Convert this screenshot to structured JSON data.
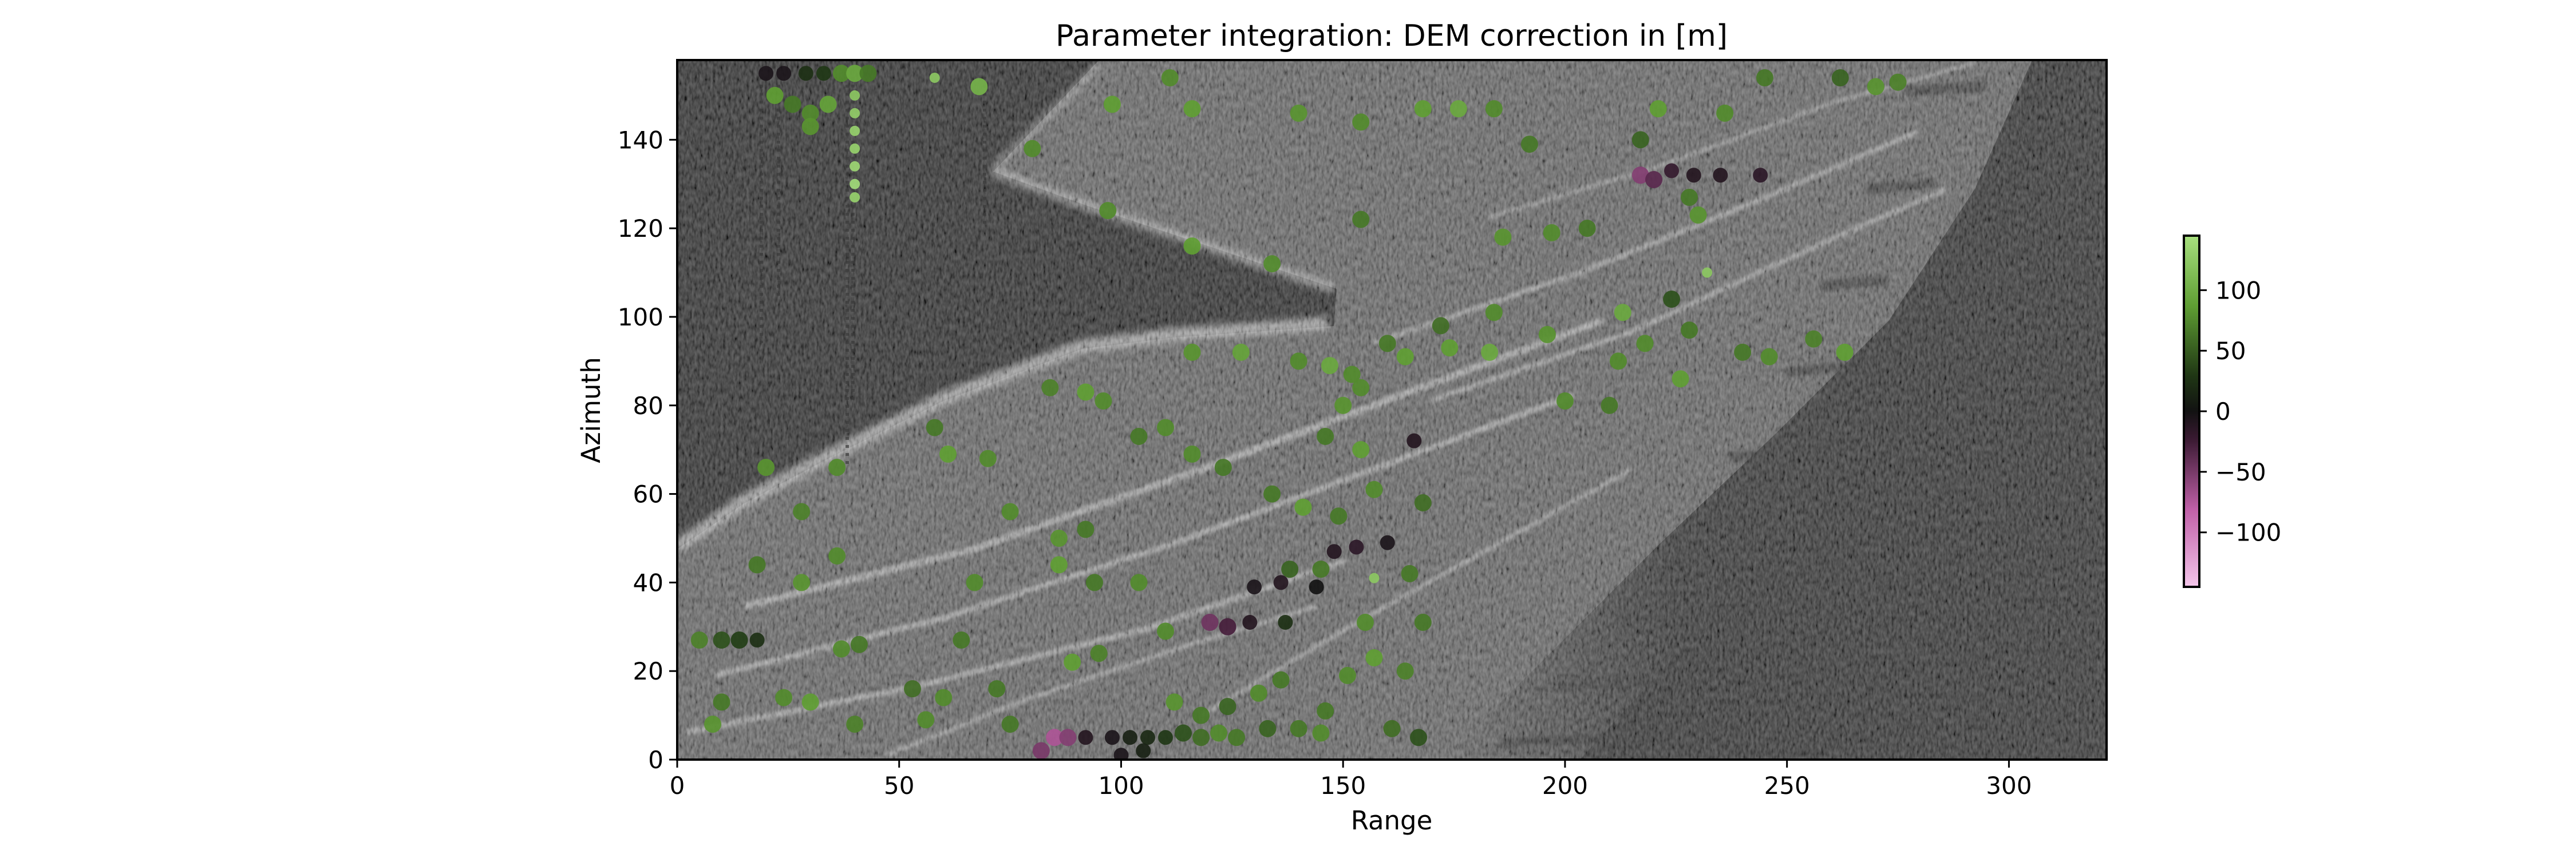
{
  "chart_data": {
    "type": "heatmap",
    "title": "Parameter integration: DEM correction in [m]",
    "xlabel": "Range",
    "ylabel": "Azimuth",
    "xlim": [
      0,
      322
    ],
    "ylim": [
      0,
      158
    ],
    "xticks": [
      0,
      50,
      100,
      150,
      200,
      250,
      300
    ],
    "yticks": [
      0,
      20,
      40,
      60,
      80,
      100,
      120,
      140
    ],
    "grid": false,
    "background": "grayscale SAR amplitude image",
    "colorbar": {
      "clim": [
        -145,
        145
      ],
      "ticks": [
        100,
        50,
        0,
        -50,
        -100
      ],
      "tick_labels": [
        "100",
        "50",
        "0",
        "−50",
        "−100"
      ],
      "colormap": "PiYG-like diverging (pink → black → green)",
      "colors": [
        "#f4c6ea",
        "#b04d9a",
        "#1f0f1a",
        "#151515",
        "#223d17",
        "#5f9e33",
        "#a8e07f"
      ]
    },
    "overlay_points": [
      {
        "x": 20,
        "y": 155,
        "v": -5
      },
      {
        "x": 24,
        "y": 155,
        "v": -5
      },
      {
        "x": 29,
        "y": 155,
        "v": 20
      },
      {
        "x": 33,
        "y": 155,
        "v": 25
      },
      {
        "x": 37,
        "y": 155,
        "v": 70
      },
      {
        "x": 40,
        "y": 155,
        "v": 90
      },
      {
        "x": 43,
        "y": 155,
        "v": 60
      },
      {
        "x": 58,
        "y": 154,
        "v": 120
      },
      {
        "x": 68,
        "y": 152,
        "v": 100
      },
      {
        "x": 40,
        "y": 150,
        "v": 120
      },
      {
        "x": 40,
        "y": 146,
        "v": 125
      },
      {
        "x": 40,
        "y": 142,
        "v": 130
      },
      {
        "x": 40,
        "y": 138,
        "v": 130
      },
      {
        "x": 40,
        "y": 134,
        "v": 135
      },
      {
        "x": 40,
        "y": 130,
        "v": 140
      },
      {
        "x": 40,
        "y": 127,
        "v": 130
      },
      {
        "x": 22,
        "y": 150,
        "v": 80
      },
      {
        "x": 26,
        "y": 148,
        "v": 60
      },
      {
        "x": 30,
        "y": 146,
        "v": 70
      },
      {
        "x": 34,
        "y": 148,
        "v": 85
      },
      {
        "x": 30,
        "y": 143,
        "v": 75
      },
      {
        "x": 80,
        "y": 138,
        "v": 70
      },
      {
        "x": 98,
        "y": 148,
        "v": 80
      },
      {
        "x": 111,
        "y": 154,
        "v": 70
      },
      {
        "x": 116,
        "y": 147,
        "v": 80
      },
      {
        "x": 140,
        "y": 146,
        "v": 75
      },
      {
        "x": 154,
        "y": 144,
        "v": 70
      },
      {
        "x": 168,
        "y": 147,
        "v": 80
      },
      {
        "x": 176,
        "y": 147,
        "v": 90
      },
      {
        "x": 184,
        "y": 147,
        "v": 70
      },
      {
        "x": 221,
        "y": 147,
        "v": 80
      },
      {
        "x": 236,
        "y": 146,
        "v": 70
      },
      {
        "x": 245,
        "y": 154,
        "v": 60
      },
      {
        "x": 262,
        "y": 154,
        "v": 50
      },
      {
        "x": 270,
        "y": 152,
        "v": 75
      },
      {
        "x": 275,
        "y": 153,
        "v": 65
      },
      {
        "x": 217,
        "y": 132,
        "v": -60
      },
      {
        "x": 220,
        "y": 131,
        "v": -40
      },
      {
        "x": 224,
        "y": 133,
        "v": -20
      },
      {
        "x": 229,
        "y": 132,
        "v": -10
      },
      {
        "x": 235,
        "y": 132,
        "v": -10
      },
      {
        "x": 244,
        "y": 132,
        "v": -15
      },
      {
        "x": 228,
        "y": 127,
        "v": 60
      },
      {
        "x": 230,
        "y": 123,
        "v": 75
      },
      {
        "x": 217,
        "y": 140,
        "v": 50
      },
      {
        "x": 192,
        "y": 139,
        "v": 60
      },
      {
        "x": 97,
        "y": 124,
        "v": 70
      },
      {
        "x": 116,
        "y": 116,
        "v": 80
      },
      {
        "x": 134,
        "y": 112,
        "v": 70
      },
      {
        "x": 154,
        "y": 122,
        "v": 60
      },
      {
        "x": 186,
        "y": 118,
        "v": 75
      },
      {
        "x": 197,
        "y": 119,
        "v": 70
      },
      {
        "x": 205,
        "y": 120,
        "v": 60
      },
      {
        "x": 232,
        "y": 110,
        "v": 120
      },
      {
        "x": 224,
        "y": 104,
        "v": 40
      },
      {
        "x": 184,
        "y": 101,
        "v": 70
      },
      {
        "x": 172,
        "y": 98,
        "v": 55
      },
      {
        "x": 160,
        "y": 94,
        "v": 60
      },
      {
        "x": 174,
        "y": 93,
        "v": 80
      },
      {
        "x": 183,
        "y": 92,
        "v": 90
      },
      {
        "x": 196,
        "y": 96,
        "v": 75
      },
      {
        "x": 213,
        "y": 101,
        "v": 90
      },
      {
        "x": 218,
        "y": 94,
        "v": 70
      },
      {
        "x": 228,
        "y": 97,
        "v": 60
      },
      {
        "x": 240,
        "y": 92,
        "v": 60
      },
      {
        "x": 246,
        "y": 91,
        "v": 70
      },
      {
        "x": 256,
        "y": 95,
        "v": 65
      },
      {
        "x": 263,
        "y": 92,
        "v": 80
      },
      {
        "x": 226,
        "y": 86,
        "v": 80
      },
      {
        "x": 212,
        "y": 90,
        "v": 70
      },
      {
        "x": 140,
        "y": 90,
        "v": 70
      },
      {
        "x": 116,
        "y": 92,
        "v": 75
      },
      {
        "x": 127,
        "y": 92,
        "v": 85
      },
      {
        "x": 147,
        "y": 89,
        "v": 90
      },
      {
        "x": 154,
        "y": 84,
        "v": 70
      },
      {
        "x": 150,
        "y": 80,
        "v": 75
      },
      {
        "x": 152,
        "y": 87,
        "v": 70
      },
      {
        "x": 164,
        "y": 91,
        "v": 80
      },
      {
        "x": 96,
        "y": 81,
        "v": 70
      },
      {
        "x": 92,
        "y": 83,
        "v": 80
      },
      {
        "x": 84,
        "y": 84,
        "v": 65
      },
      {
        "x": 110,
        "y": 75,
        "v": 70
      },
      {
        "x": 104,
        "y": 73,
        "v": 60
      },
      {
        "x": 146,
        "y": 73,
        "v": 60
      },
      {
        "x": 154,
        "y": 70,
        "v": 80
      },
      {
        "x": 166,
        "y": 72,
        "v": -10
      },
      {
        "x": 200,
        "y": 81,
        "v": 70
      },
      {
        "x": 210,
        "y": 80,
        "v": 60
      },
      {
        "x": 116,
        "y": 69,
        "v": 70
      },
      {
        "x": 123,
        "y": 66,
        "v": 60
      },
      {
        "x": 61,
        "y": 69,
        "v": 80
      },
      {
        "x": 70,
        "y": 68,
        "v": 70
      },
      {
        "x": 58,
        "y": 75,
        "v": 60
      },
      {
        "x": 36,
        "y": 66,
        "v": 70
      },
      {
        "x": 20,
        "y": 66,
        "v": 75
      },
      {
        "x": 28,
        "y": 56,
        "v": 65
      },
      {
        "x": 75,
        "y": 56,
        "v": 70
      },
      {
        "x": 86,
        "y": 50,
        "v": 75
      },
      {
        "x": 92,
        "y": 52,
        "v": 60
      },
      {
        "x": 134,
        "y": 60,
        "v": 60
      },
      {
        "x": 141,
        "y": 57,
        "v": 80
      },
      {
        "x": 149,
        "y": 55,
        "v": 60
      },
      {
        "x": 157,
        "y": 61,
        "v": 70
      },
      {
        "x": 168,
        "y": 58,
        "v": 55
      },
      {
        "x": 148,
        "y": 47,
        "v": -10
      },
      {
        "x": 153,
        "y": 48,
        "v": -15
      },
      {
        "x": 160,
        "y": 49,
        "v": -5
      },
      {
        "x": 138,
        "y": 43,
        "v": 50
      },
      {
        "x": 145,
        "y": 43,
        "v": 60
      },
      {
        "x": 157,
        "y": 41,
        "v": 120
      },
      {
        "x": 165,
        "y": 42,
        "v": 60
      },
      {
        "x": 130,
        "y": 39,
        "v": -5
      },
      {
        "x": 136,
        "y": 40,
        "v": -10
      },
      {
        "x": 144,
        "y": 39,
        "v": 0
      },
      {
        "x": 120,
        "y": 31,
        "v": -50
      },
      {
        "x": 124,
        "y": 30,
        "v": -30
      },
      {
        "x": 129,
        "y": 31,
        "v": -10
      },
      {
        "x": 137,
        "y": 31,
        "v": 20
      },
      {
        "x": 155,
        "y": 31,
        "v": 70
      },
      {
        "x": 168,
        "y": 31,
        "v": 60
      },
      {
        "x": 28,
        "y": 40,
        "v": 75
      },
      {
        "x": 36,
        "y": 46,
        "v": 70
      },
      {
        "x": 18,
        "y": 44,
        "v": 60
      },
      {
        "x": 67,
        "y": 40,
        "v": 70
      },
      {
        "x": 86,
        "y": 44,
        "v": 80
      },
      {
        "x": 94,
        "y": 40,
        "v": 60
      },
      {
        "x": 104,
        "y": 40,
        "v": 70
      },
      {
        "x": 5,
        "y": 27,
        "v": 65
      },
      {
        "x": 10,
        "y": 27,
        "v": 40
      },
      {
        "x": 14,
        "y": 27,
        "v": 30
      },
      {
        "x": 18,
        "y": 27,
        "v": 20
      },
      {
        "x": 37,
        "y": 25,
        "v": 70
      },
      {
        "x": 41,
        "y": 26,
        "v": 60
      },
      {
        "x": 64,
        "y": 27,
        "v": 60
      },
      {
        "x": 110,
        "y": 29,
        "v": 70
      },
      {
        "x": 89,
        "y": 22,
        "v": 80
      },
      {
        "x": 95,
        "y": 24,
        "v": 65
      },
      {
        "x": 136,
        "y": 18,
        "v": 60
      },
      {
        "x": 151,
        "y": 19,
        "v": 70
      },
      {
        "x": 157,
        "y": 23,
        "v": 80
      },
      {
        "x": 164,
        "y": 20,
        "v": 65
      },
      {
        "x": 10,
        "y": 13,
        "v": 60
      },
      {
        "x": 24,
        "y": 14,
        "v": 70
      },
      {
        "x": 30,
        "y": 13,
        "v": 80
      },
      {
        "x": 53,
        "y": 16,
        "v": 55
      },
      {
        "x": 60,
        "y": 14,
        "v": 70
      },
      {
        "x": 72,
        "y": 16,
        "v": 60
      },
      {
        "x": 112,
        "y": 13,
        "v": 75
      },
      {
        "x": 118,
        "y": 10,
        "v": 60
      },
      {
        "x": 124,
        "y": 12,
        "v": 50
      },
      {
        "x": 131,
        "y": 15,
        "v": 70
      },
      {
        "x": 146,
        "y": 11,
        "v": 60
      },
      {
        "x": 8,
        "y": 8,
        "v": 75
      },
      {
        "x": 40,
        "y": 8,
        "v": 65
      },
      {
        "x": 56,
        "y": 9,
        "v": 70
      },
      {
        "x": 75,
        "y": 8,
        "v": 60
      },
      {
        "x": 82,
        "y": 2,
        "v": -55
      },
      {
        "x": 85,
        "y": 5,
        "v": -80
      },
      {
        "x": 88,
        "y": 5,
        "v": -60
      },
      {
        "x": 92,
        "y": 5,
        "v": -10
      },
      {
        "x": 98,
        "y": 5,
        "v": -5
      },
      {
        "x": 102,
        "y": 5,
        "v": 10
      },
      {
        "x": 106,
        "y": 5,
        "v": 15
      },
      {
        "x": 110,
        "y": 5,
        "v": 25
      },
      {
        "x": 114,
        "y": 6,
        "v": 40
      },
      {
        "x": 118,
        "y": 5,
        "v": 55
      },
      {
        "x": 122,
        "y": 6,
        "v": 70
      },
      {
        "x": 126,
        "y": 5,
        "v": 60
      },
      {
        "x": 100,
        "y": 1,
        "v": -5
      },
      {
        "x": 105,
        "y": 2,
        "v": 10
      },
      {
        "x": 133,
        "y": 7,
        "v": 50
      },
      {
        "x": 140,
        "y": 7,
        "v": 60
      },
      {
        "x": 145,
        "y": 6,
        "v": 70
      },
      {
        "x": 161,
        "y": 7,
        "v": 55
      },
      {
        "x": 167,
        "y": 5,
        "v": 40
      }
    ]
  }
}
